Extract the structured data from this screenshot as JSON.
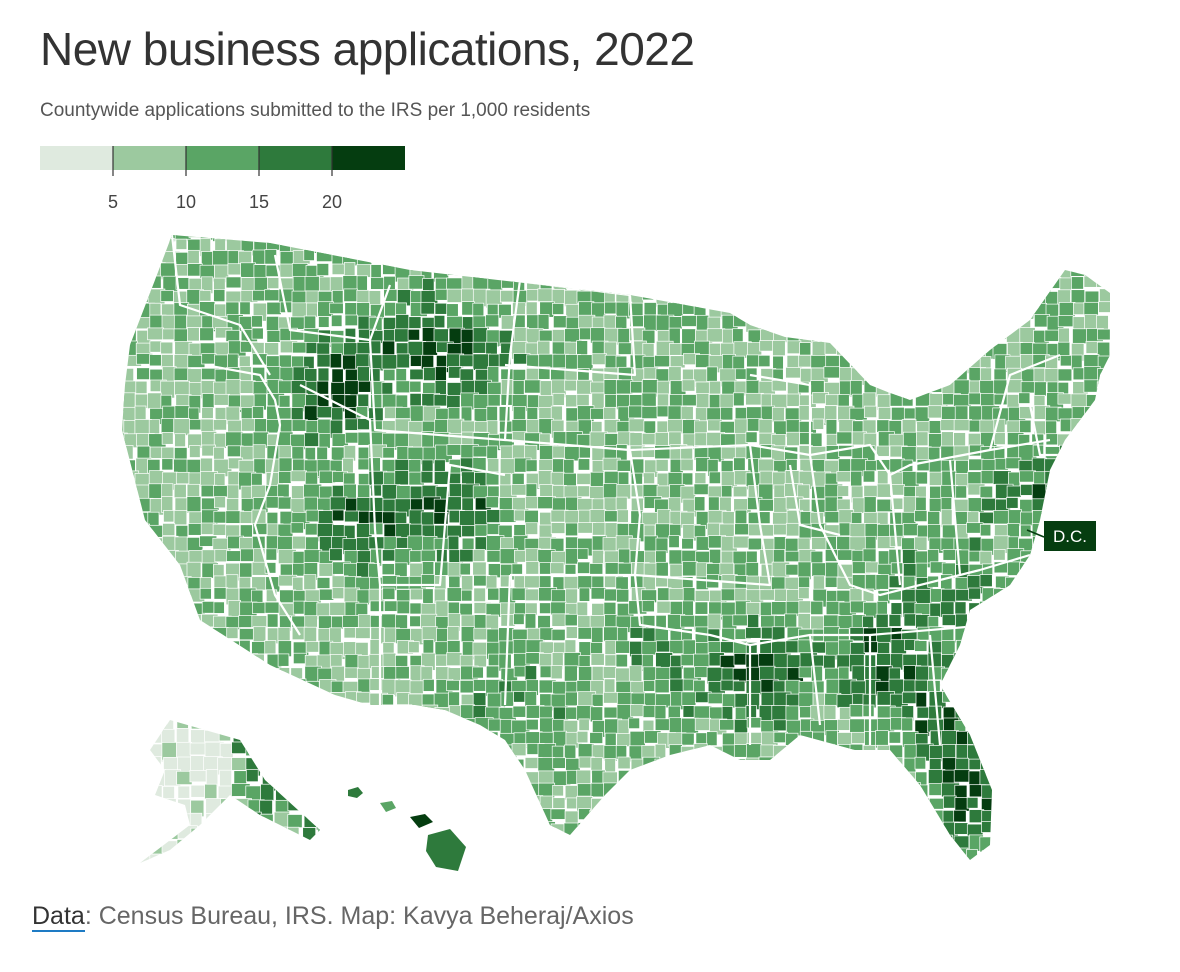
{
  "header": {
    "title": "New business applications, 2022",
    "subtitle": "Countywide applications submitted to the IRS per 1,000 residents"
  },
  "legend": {
    "bins": [
      {
        "max": 5,
        "color": "#dfeadf"
      },
      {
        "max": 10,
        "color": "#9cc99f"
      },
      {
        "max": 15,
        "color": "#5aa565"
      },
      {
        "max": 20,
        "color": "#2e7a3c"
      },
      {
        "max": 25,
        "color": "#053d10"
      }
    ],
    "ticks": [
      "5",
      "10",
      "15",
      "20"
    ]
  },
  "map": {
    "dc_label": "D.C.",
    "dc_color": "#053d10",
    "state_outline_color": "#ffffff"
  },
  "footer": {
    "data_label": "Data",
    "source_text": ": Census Bureau, IRS. Map: Kavya Beheraj/Axios"
  }
}
